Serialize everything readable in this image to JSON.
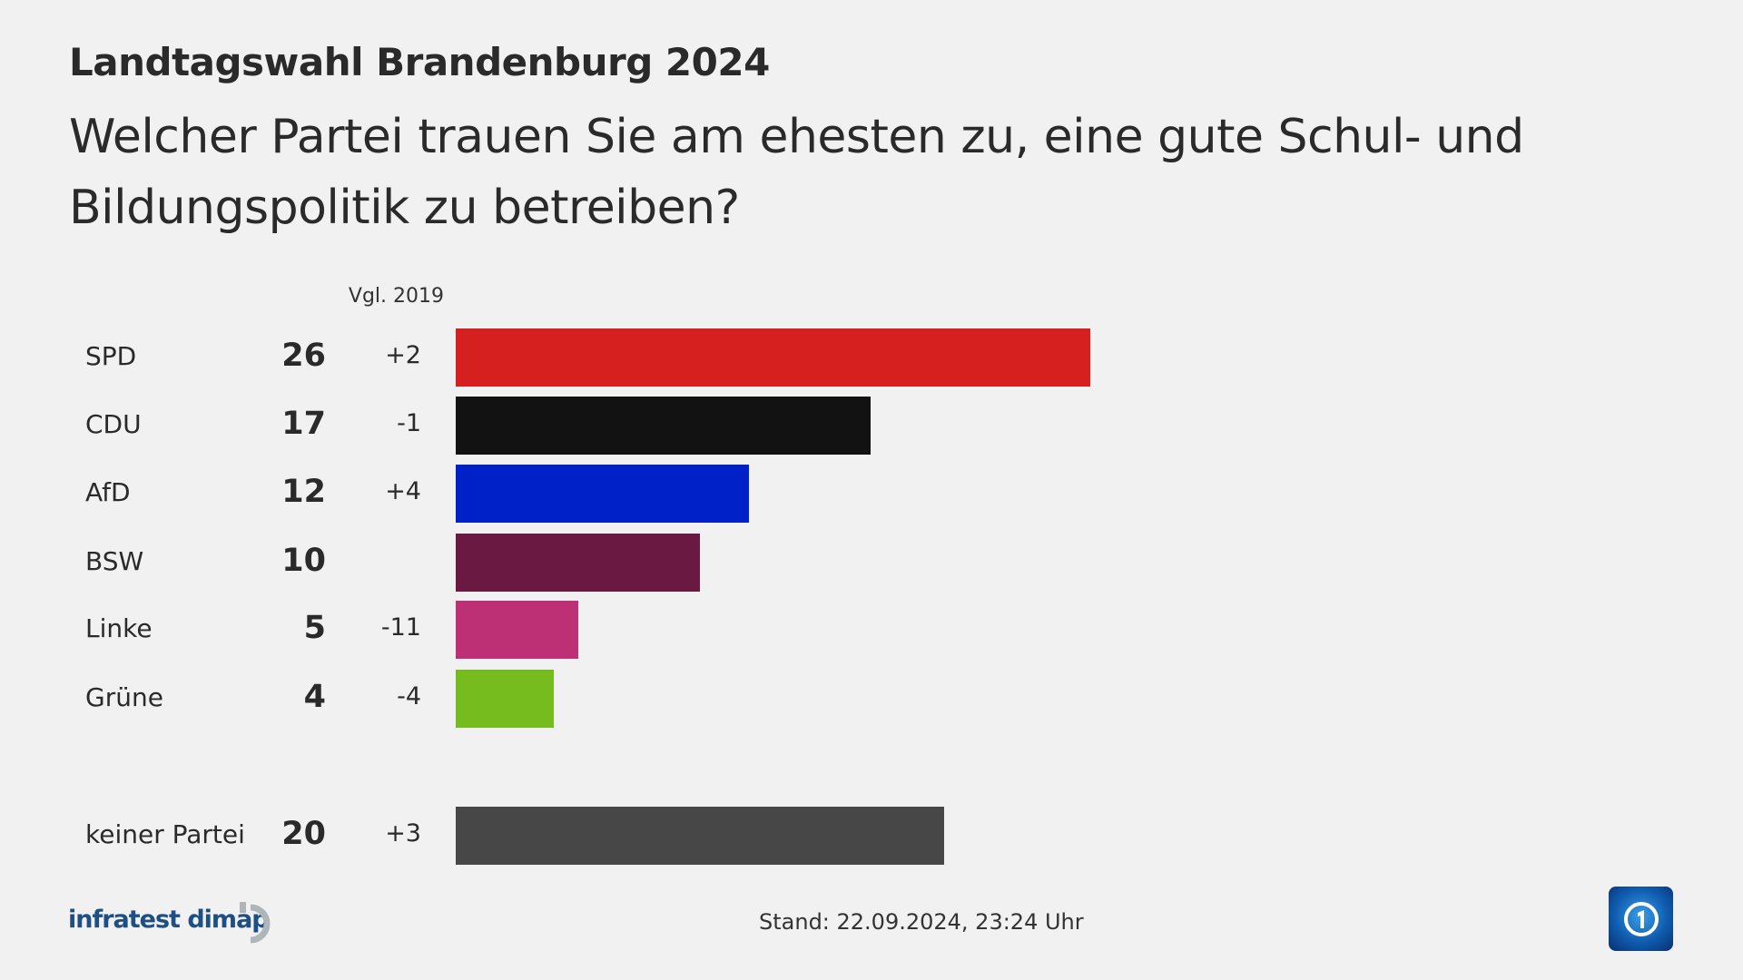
{
  "header": {
    "title": "Landtagswahl Brandenburg 2024",
    "question": "Welcher Partei trauen Sie am ehesten zu, eine gute Schul- und Bildungspolitik zu betreiben?"
  },
  "chart_data": {
    "type": "bar",
    "orientation": "horizontal",
    "comparison_label": "Vgl. 2019",
    "categories": [
      "SPD",
      "CDU",
      "AfD",
      "BSW",
      "Linke",
      "Grüne",
      "keiner Partei"
    ],
    "values": [
      26,
      17,
      12,
      10,
      5,
      4,
      20
    ],
    "values_label": [
      "26",
      "17",
      "12",
      "10",
      "5",
      "4",
      "20"
    ],
    "changes": [
      "+2",
      "-1",
      "+4",
      "",
      "-11",
      "-4",
      "+3"
    ],
    "colors": [
      "#d61f1f",
      "#121212",
      "#0021c8",
      "#6a1a42",
      "#bd3075",
      "#77bc1f",
      "#474747"
    ],
    "grid": false
  },
  "footer": {
    "source": "infratest dimap",
    "stand": "Stand:  22.09.2024, 23:24 Uhr",
    "logo_icon": "ard-das-erste-icon"
  }
}
